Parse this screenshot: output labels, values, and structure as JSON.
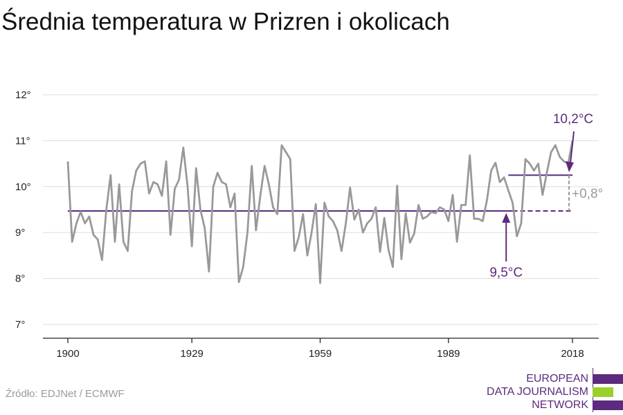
{
  "header": {
    "title": "Średnia temperatura w Prizren i okolicach"
  },
  "footer": {
    "source": "Źródło: EDJNet / ECMWF"
  },
  "logo": {
    "lines": [
      "EUROPEAN",
      "DATA JOURNALISM",
      "NETWORK"
    ],
    "colors": [
      "#5c2a7e",
      "#9bd02a",
      "#5c2a7e"
    ]
  },
  "colors": {
    "series": "#999999",
    "accent": "#5c2a7e",
    "grid": "#dddddd",
    "delta": "#9a9a9a"
  },
  "chart_data": {
    "type": "line",
    "title": "Średnia temperatura w Prizren i okolicach",
    "xlabel": "",
    "ylabel": "",
    "xlim": [
      1900,
      2018
    ],
    "ylim": [
      7,
      12
    ],
    "x_ticks": [
      1900,
      1929,
      1959,
      1989,
      2018
    ],
    "y_ticks": [
      7,
      8,
      9,
      10,
      11,
      12
    ],
    "y_tick_labels": [
      "7°",
      "8°",
      "9°",
      "10°",
      "11°",
      "12°"
    ],
    "grid": true,
    "series": [
      {
        "x": [
          1900,
          1901,
          1902,
          1903,
          1904,
          1905,
          1906,
          1907,
          1908,
          1909,
          1910,
          1911,
          1912,
          1913,
          1914,
          1915,
          1916,
          1917,
          1918,
          1919,
          1920,
          1921,
          1922,
          1923,
          1924,
          1925,
          1926,
          1927,
          1928,
          1929,
          1930,
          1931,
          1932,
          1933,
          1934,
          1935,
          1936,
          1937,
          1938,
          1939,
          1940,
          1941,
          1942,
          1943,
          1944,
          1945,
          1946,
          1947,
          1948,
          1949,
          1950,
          1951,
          1952,
          1953,
          1954,
          1955,
          1956,
          1957,
          1958,
          1959,
          1960,
          1961,
          1962,
          1963,
          1964,
          1965,
          1966,
          1967,
          1968,
          1969,
          1970,
          1971,
          1972,
          1973,
          1974,
          1975,
          1976,
          1977,
          1978,
          1979,
          1980,
          1981,
          1982,
          1983,
          1984,
          1985,
          1986,
          1987,
          1988,
          1989,
          1990,
          1991,
          1992,
          1993,
          1994,
          1995,
          1996,
          1997,
          1998,
          1999,
          2000,
          2001,
          2002,
          2003,
          2004,
          2005,
          2006,
          2007,
          2008,
          2009,
          2010,
          2011,
          2012,
          2013,
          2014,
          2015,
          2016,
          2017,
          2018
        ],
        "values": [
          10.55,
          8.8,
          9.2,
          9.45,
          9.2,
          9.35,
          8.95,
          8.85,
          8.4,
          9.5,
          10.25,
          8.8,
          10.05,
          8.8,
          8.6,
          9.9,
          10.35,
          10.5,
          10.55,
          9.85,
          10.1,
          10.05,
          9.8,
          10.55,
          8.95,
          9.95,
          10.15,
          10.85,
          10.0,
          8.7,
          10.4,
          9.5,
          9.1,
          8.15,
          10.0,
          10.3,
          10.1,
          10.05,
          9.55,
          9.85,
          7.92,
          8.25,
          9.0,
          10.45,
          9.05,
          9.8,
          10.45,
          10.05,
          9.55,
          9.4,
          10.9,
          10.75,
          10.6,
          8.6,
          8.9,
          9.4,
          8.5,
          9.0,
          9.62,
          7.9,
          9.65,
          9.35,
          9.25,
          9.05,
          8.6,
          9.2,
          9.98,
          9.28,
          9.5,
          9.0,
          9.2,
          9.3,
          9.55,
          8.58,
          9.32,
          8.62,
          8.25,
          10.02,
          8.42,
          9.42,
          8.78,
          8.98,
          9.6,
          9.3,
          9.35,
          9.45,
          9.42,
          9.55,
          9.5,
          9.25,
          9.82,
          8.8,
          9.6,
          9.6,
          10.68,
          9.3,
          9.3,
          9.25,
          9.7,
          10.35,
          10.52,
          10.1,
          10.2,
          9.92,
          9.65,
          8.92,
          9.2,
          10.6,
          10.5,
          10.35,
          10.5,
          9.82,
          10.3,
          10.75,
          10.9,
          10.65,
          10.55,
          10.5,
          11.0
        ]
      }
    ],
    "annotations": [
      {
        "label": "9,5°C",
        "value": 9.47,
        "from": 1900,
        "to": 2018
      },
      {
        "label": "10,2°C",
        "value": 10.25,
        "from": 2003,
        "to": 2018
      },
      {
        "label": "+0,8°"
      }
    ]
  }
}
